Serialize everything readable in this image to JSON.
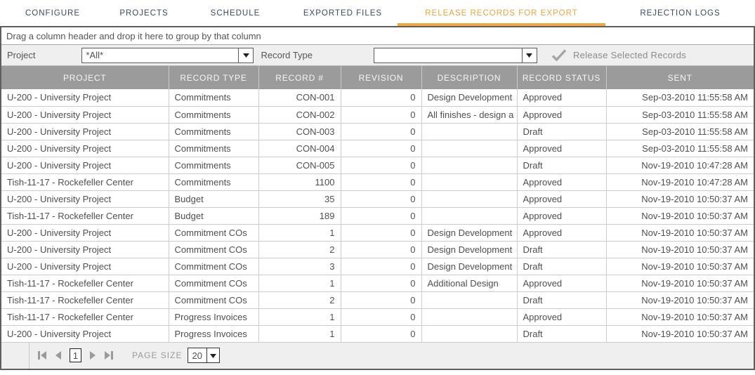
{
  "colors": {
    "accent_orange": "#E9A43F",
    "tab_text": "#3C4A5B",
    "header_bg": "#9B9B9B",
    "disabled_gray": "#9A9A9A"
  },
  "tabs": [
    {
      "label": "CONFIGURE",
      "active": false
    },
    {
      "label": "PROJECTS",
      "active": false
    },
    {
      "label": "SCHEDULE",
      "active": false
    },
    {
      "label": "EXPORTED FILES",
      "active": false
    },
    {
      "label": "RELEASE RECORDS FOR EXPORT",
      "active": true
    },
    {
      "label": "REJECTION LOGS",
      "active": false
    }
  ],
  "group_bar": {
    "text": "Drag a column header and drop it here to group by that column"
  },
  "filters": {
    "project_label": "Project",
    "project_value": "*All*",
    "record_type_label": "Record Type",
    "record_type_value": "",
    "release_button_label": "Release Selected Records"
  },
  "table": {
    "columns": [
      "PROJECT",
      "RECORD TYPE",
      "RECORD #",
      "REVISION",
      "DESCRIPTION",
      "RECORD STATUS",
      "SENT"
    ],
    "rows": [
      [
        "U-200 - University Project",
        "Commitments",
        "CON-001",
        "0",
        "Design Development",
        "Approved",
        "Sep-03-2010 11:55:58 AM"
      ],
      [
        "U-200 - University Project",
        "Commitments",
        "CON-002",
        "0",
        "All finishes - design a",
        "Approved",
        "Sep-03-2010 11:55:58 AM"
      ],
      [
        "U-200 - University Project",
        "Commitments",
        "CON-003",
        "0",
        "",
        "Draft",
        "Sep-03-2010 11:55:58 AM"
      ],
      [
        "U-200 - University Project",
        "Commitments",
        "CON-004",
        "0",
        "",
        "Approved",
        "Sep-03-2010 11:55:58 AM"
      ],
      [
        "U-200 - University Project",
        "Commitments",
        "CON-005",
        "0",
        "",
        "Draft",
        "Nov-19-2010 10:47:28 AM"
      ],
      [
        "Tish-11-17 - Rockefeller Center",
        "Commitments",
        "1100",
        "0",
        "",
        "Approved",
        "Nov-19-2010 10:47:28 AM"
      ],
      [
        "U-200 - University Project",
        "Budget",
        "35",
        "0",
        "",
        "Approved",
        "Nov-19-2010 10:50:37 AM"
      ],
      [
        "Tish-11-17 - Rockefeller Center",
        "Budget",
        "189",
        "0",
        "",
        "Approved",
        "Nov-19-2010 10:50:37 AM"
      ],
      [
        "U-200 - University Project",
        "Commitment COs",
        "1",
        "0",
        "Design Development",
        "Approved",
        "Nov-19-2010 10:50:37 AM"
      ],
      [
        "U-200 - University Project",
        "Commitment COs",
        "2",
        "0",
        "Design Development",
        "Draft",
        "Nov-19-2010 10:50:37 AM"
      ],
      [
        "U-200 - University Project",
        "Commitment COs",
        "3",
        "0",
        "Design Development",
        "Draft",
        "Nov-19-2010 10:50:37 AM"
      ],
      [
        "Tish-11-17 - Rockefeller Center",
        "Commitment COs",
        "1",
        "0",
        "Additional Design",
        "Approved",
        "Nov-19-2010 10:50:37 AM"
      ],
      [
        "Tish-11-17 - Rockefeller Center",
        "Commitment COs",
        "2",
        "0",
        "",
        "Draft",
        "Nov-19-2010 10:50:37 AM"
      ],
      [
        "Tish-11-17 - Rockefeller Center",
        "Progress Invoices",
        "1",
        "0",
        "",
        "Approved",
        "Nov-19-2010 10:50:37 AM"
      ],
      [
        "U-200 - University Project",
        "Progress Invoices",
        "1",
        "0",
        "",
        "Draft",
        "Nov-19-2010 10:50:37 AM"
      ]
    ]
  },
  "pager": {
    "current_page": "1",
    "page_size_label": "PAGE SIZE",
    "page_size_value": "20"
  }
}
